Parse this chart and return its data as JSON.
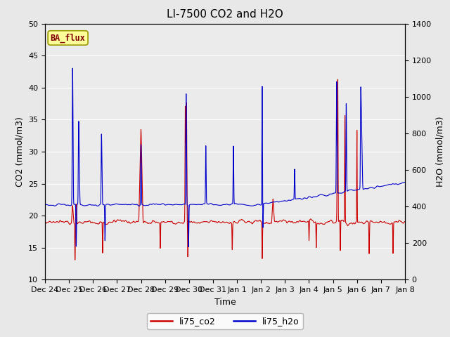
{
  "title": "LI-7500 CO2 and H2O",
  "xlabel": "Time",
  "ylabel_left": "CO2 (mmol/m3)",
  "ylabel_right": "H2O (mmol/m3)",
  "ylim_left": [
    10,
    50
  ],
  "ylim_right": [
    0,
    1400
  ],
  "yticks_left": [
    10,
    15,
    20,
    25,
    30,
    35,
    40,
    45,
    50
  ],
  "yticks_right": [
    0,
    200,
    400,
    600,
    800,
    1000,
    1200,
    1400
  ],
  "annotation_text": "BA_flux",
  "annotation_bg": "#ffff99",
  "annotation_fg": "#800000",
  "line_co2_color": "#cc0000",
  "line_h2o_color": "#0000cc",
  "bg_color": "#e8e8e8",
  "plot_bg_color": "#ebebeb",
  "legend_labels": [
    "li75_co2",
    "li75_h2o"
  ],
  "n_points": 5000,
  "x_tick_labels": [
    "Dec 24",
    "Dec 25",
    "Dec 26",
    "Dec 27",
    "Dec 28",
    "Dec 29",
    "Dec 30",
    "Dec 31",
    "Jan 1",
    "Jan 2",
    "Jan 3",
    "Jan 4",
    "Jan 5",
    "Jan 6",
    "Jan 7",
    "Jan 8"
  ],
  "n_days": 15
}
